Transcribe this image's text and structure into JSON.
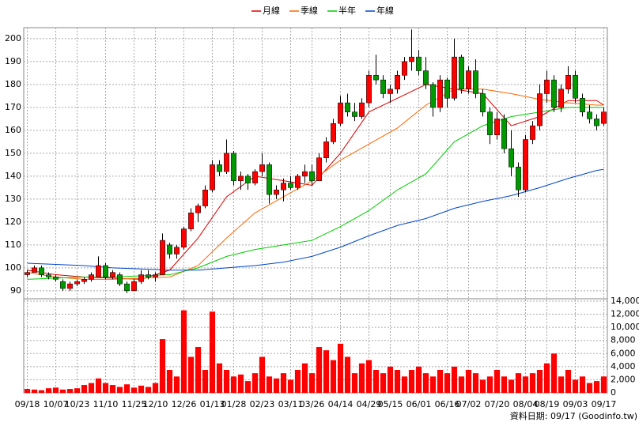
{
  "chart_data": {
    "type": "candlestick",
    "grid": true,
    "up_color": "#ff0000",
    "down_color": "#009900",
    "open": [
      97,
      98,
      100,
      97,
      96,
      94,
      91,
      93,
      94,
      95,
      96,
      101,
      96,
      97,
      93,
      90,
      94,
      97,
      96,
      97,
      110,
      106,
      109,
      117,
      124,
      127,
      134,
      145,
      142,
      150,
      138,
      140,
      137,
      142,
      145,
      132,
      134,
      137,
      135,
      140,
      142,
      138,
      148,
      155,
      163,
      172,
      168,
      166,
      172,
      184,
      182,
      176,
      178,
      184,
      190,
      192,
      186,
      180,
      170,
      182,
      174,
      192,
      178,
      186,
      176,
      168,
      158,
      165,
      152,
      144,
      134,
      156,
      162,
      176,
      182,
      170,
      178,
      184,
      174,
      168,
      165,
      163
    ],
    "high": [
      99,
      101,
      101,
      98,
      97,
      95,
      94,
      95,
      96,
      98,
      105,
      102,
      99,
      98,
      94,
      95,
      99,
      99,
      98,
      115,
      111,
      110,
      118,
      126,
      128,
      136,
      147,
      147,
      156,
      151,
      142,
      141,
      143,
      150,
      146,
      136,
      139,
      140,
      141,
      145,
      145,
      150,
      157,
      165,
      175,
      176,
      172,
      174,
      186,
      193,
      184,
      180,
      186,
      192,
      204,
      195,
      192,
      181,
      184,
      183,
      200,
      193,
      188,
      191,
      178,
      170,
      168,
      167,
      160,
      146,
      158,
      164,
      180,
      186,
      184,
      180,
      188,
      186,
      176,
      171,
      167,
      170
    ],
    "low": [
      96,
      98,
      96,
      95,
      94,
      90,
      90,
      92,
      93,
      94,
      96,
      95,
      95,
      92,
      89,
      90,
      93,
      95,
      94,
      97,
      104,
      104,
      108,
      116,
      120,
      126,
      133,
      140,
      141,
      136,
      134,
      134,
      136,
      140,
      128,
      130,
      129,
      134,
      134,
      137,
      136,
      138,
      146,
      154,
      162,
      166,
      164,
      165,
      170,
      180,
      174,
      172,
      176,
      182,
      186,
      184,
      178,
      166,
      168,
      170,
      173,
      176,
      176,
      174,
      166,
      154,
      156,
      150,
      140,
      131,
      133,
      154,
      160,
      172,
      168,
      168,
      176,
      172,
      166,
      163,
      160,
      162
    ],
    "close": [
      98,
      100,
      97,
      96,
      95,
      91,
      93,
      94,
      95,
      97,
      101,
      96,
      98,
      93,
      90,
      94,
      97,
      96,
      97,
      112,
      106,
      109,
      117,
      124,
      127,
      134,
      145,
      142,
      150,
      138,
      140,
      137,
      142,
      145,
      132,
      134,
      137,
      135,
      140,
      142,
      138,
      148,
      155,
      163,
      172,
      168,
      166,
      172,
      184,
      182,
      176,
      178,
      184,
      190,
      192,
      186,
      180,
      170,
      182,
      174,
      192,
      178,
      186,
      176,
      168,
      158,
      165,
      152,
      144,
      134,
      156,
      162,
      176,
      182,
      170,
      178,
      184,
      174,
      168,
      165,
      162,
      168
    ],
    "lines": [
      {
        "name": "月線",
        "color": "#dd0000",
        "x": [
          0,
          4,
          8,
          12,
          16,
          20,
          24,
          28,
          32,
          36,
          40,
          44,
          48,
          52,
          56,
          60,
          64,
          68,
          72,
          76,
          80,
          81
        ],
        "values": [
          99,
          97,
          96,
          95.5,
          95,
          99,
          113,
          131,
          140,
          138,
          136,
          150,
          168,
          174,
          180,
          178,
          176,
          162,
          166,
          173,
          173,
          171
        ]
      },
      {
        "name": "季線",
        "color": "#ff6600",
        "x": [
          0,
          4,
          8,
          12,
          16,
          20,
          24,
          28,
          32,
          36,
          40,
          44,
          48,
          52,
          56,
          60,
          64,
          68,
          72,
          76,
          80,
          81
        ],
        "values": [
          98,
          96,
          95,
          95,
          95.5,
          96,
          101,
          113,
          124,
          131,
          138,
          147,
          154,
          161,
          171,
          178,
          178,
          176,
          173.5,
          172,
          171,
          171
        ]
      },
      {
        "name": "半年",
        "color": "#00cc00",
        "x": [
          0,
          4,
          8,
          12,
          16,
          20,
          24,
          28,
          32,
          36,
          40,
          44,
          48,
          52,
          56,
          60,
          64,
          68,
          72,
          76,
          80,
          81
        ],
        "values": [
          95,
          95.5,
          96,
          96,
          96.5,
          97,
          100,
          105,
          108,
          110,
          112,
          118,
          125,
          134,
          141,
          155,
          162,
          166,
          168,
          170,
          170,
          170
        ]
      },
      {
        "name": "年線",
        "color": "#0044cc",
        "x": [
          0,
          4,
          8,
          12,
          16,
          20,
          24,
          28,
          32,
          36,
          40,
          44,
          48,
          52,
          56,
          60,
          64,
          68,
          72,
          76,
          80,
          81
        ],
        "values": [
          102,
          101.5,
          101,
          100,
          99.5,
          99,
          99,
          100,
          101,
          102.5,
          105,
          109,
          114,
          118.5,
          121.5,
          126,
          129,
          131.5,
          135,
          139,
          142.5,
          143
        ]
      }
    ],
    "xlim": [
      -0.5,
      81.5
    ],
    "xticks": [
      {
        "value": 0,
        "label": "09/18"
      },
      {
        "value": 4,
        "label": "10/07"
      },
      {
        "value": 7,
        "label": "10/23"
      },
      {
        "value": 11,
        "label": "11/10"
      },
      {
        "value": 15,
        "label": "11/25"
      },
      {
        "value": 18,
        "label": "12/10"
      },
      {
        "value": 22,
        "label": "12/26"
      },
      {
        "value": 26,
        "label": "01/13"
      },
      {
        "value": 29,
        "label": "01/28"
      },
      {
        "value": 33,
        "label": "02/23"
      },
      {
        "value": 37,
        "label": "03/11"
      },
      {
        "value": 40,
        "label": "03/26"
      },
      {
        "value": 44,
        "label": "04/14"
      },
      {
        "value": 48,
        "label": "04/29"
      },
      {
        "value": 51,
        "label": "05/15"
      },
      {
        "value": 55,
        "label": "06/01"
      },
      {
        "value": 59,
        "label": "06/16"
      },
      {
        "value": 62,
        "label": "07/02"
      },
      {
        "value": 66,
        "label": "07/20"
      },
      {
        "value": 70,
        "label": "08/04"
      },
      {
        "value": 73,
        "label": "08/19"
      },
      {
        "value": 77,
        "label": "09/03"
      },
      {
        "value": 81,
        "label": "09/17"
      }
    ],
    "ylim": [
      86.5,
      204.8
    ],
    "yticks": [
      90,
      100,
      110,
      120,
      130,
      140,
      150,
      160,
      170,
      180,
      190,
      200
    ],
    "volume": {
      "color": "#ff0000",
      "values": [
        600,
        500,
        400,
        700,
        800,
        500,
        600,
        700,
        1200,
        1500,
        2200,
        1500,
        1200,
        900,
        1300,
        800,
        1100,
        900,
        1500,
        8200,
        3500,
        2500,
        12600,
        5500,
        7000,
        3500,
        12400,
        4500,
        3500,
        2500,
        2800,
        1800,
        3000,
        5500,
        2500,
        2200,
        3000,
        2000,
        3500,
        4500,
        3000,
        7000,
        6500,
        5000,
        7500,
        5500,
        3000,
        4500,
        5000,
        3500,
        3000,
        4000,
        3500,
        2500,
        3500,
        4000,
        3000,
        2500,
        3500,
        3000,
        4000,
        2500,
        3500,
        3000,
        2000,
        2500,
        3500,
        2500,
        2000,
        3000,
        2500,
        3000,
        3500,
        4500,
        6000,
        2500,
        3500,
        2000,
        2500,
        1500,
        1800,
        2500
      ],
      "ylim": [
        0,
        14360
      ],
      "yticks": [
        0,
        {
          "value": 2000,
          "label": "2,000"
        },
        {
          "value": 4000,
          "label": "4,000"
        },
        {
          "value": 6000,
          "label": "6,000"
        },
        {
          "value": 8000,
          "label": "8,000"
        },
        {
          "value": 10000,
          "label": "10,000"
        },
        {
          "value": 12000,
          "label": "12,000"
        },
        {
          "value": 14000,
          "label": "14,000"
        }
      ]
    },
    "footer": "資料日期: 09/17  (Goodinfo.tw)"
  }
}
